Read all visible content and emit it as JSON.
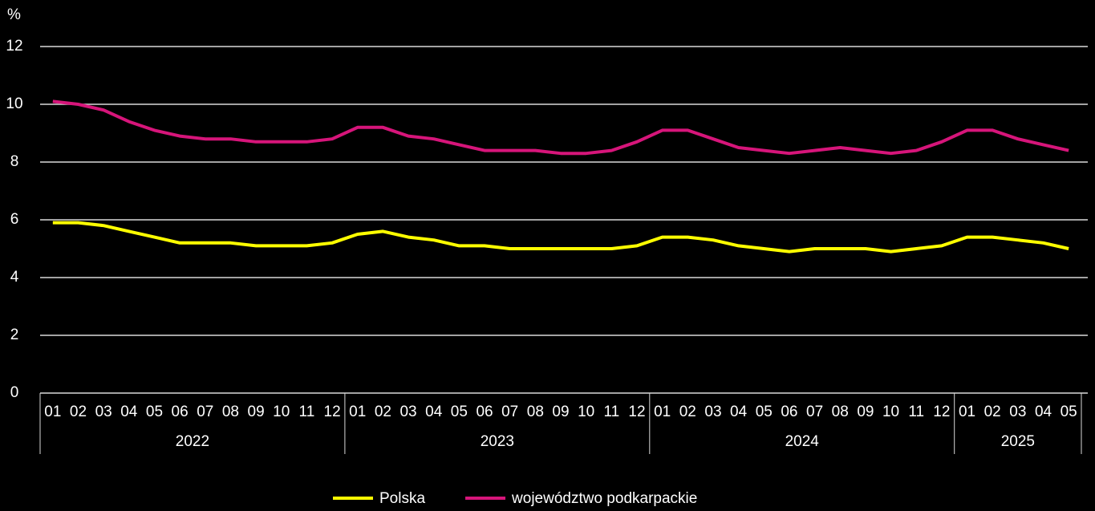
{
  "chart_data": {
    "type": "line",
    "y_label": "%",
    "categories": [
      "01",
      "02",
      "03",
      "04",
      "05",
      "06",
      "07",
      "08",
      "09",
      "10",
      "11",
      "12",
      "01",
      "02",
      "03",
      "04",
      "05",
      "06",
      "07",
      "08",
      "09",
      "10",
      "11",
      "12",
      "01",
      "02",
      "03",
      "04",
      "05",
      "06",
      "07",
      "08",
      "09",
      "10",
      "11",
      "12",
      "01",
      "02",
      "03",
      "04",
      "05"
    ],
    "x_groups": [
      "2022",
      "2023",
      "2024",
      "2025"
    ],
    "series": [
      {
        "name": "Polska",
        "color": "#ffff00",
        "values": [
          5.9,
          5.9,
          5.8,
          5.6,
          5.4,
          5.2,
          5.2,
          5.2,
          5.1,
          5.1,
          5.1,
          5.2,
          5.5,
          5.6,
          5.4,
          5.3,
          5.1,
          5.1,
          5.0,
          5.0,
          5.0,
          5.0,
          5.0,
          5.1,
          5.4,
          5.4,
          5.3,
          5.1,
          5.0,
          4.9,
          5.0,
          5.0,
          5.0,
          4.9,
          5.0,
          5.1,
          5.4,
          5.4,
          5.3,
          5.2,
          5.0
        ]
      },
      {
        "name": "województwo podkarpackie",
        "color": "#d6157a",
        "values": [
          10.1,
          10.0,
          9.8,
          9.4,
          9.1,
          8.9,
          8.8,
          8.8,
          8.7,
          8.7,
          8.7,
          8.8,
          9.2,
          9.2,
          8.9,
          8.8,
          8.6,
          8.4,
          8.4,
          8.4,
          8.3,
          8.3,
          8.4,
          8.7,
          9.1,
          9.1,
          8.8,
          8.5,
          8.4,
          8.3,
          8.4,
          8.5,
          8.4,
          8.3,
          8.4,
          8.7,
          9.1,
          9.1,
          8.8,
          8.6,
          8.4
        ]
      }
    ],
    "ylim": [
      0,
      12
    ],
    "yticks": [
      0,
      2,
      4,
      6,
      8,
      10,
      12
    ],
    "grid": true,
    "legend": "bottom"
  }
}
